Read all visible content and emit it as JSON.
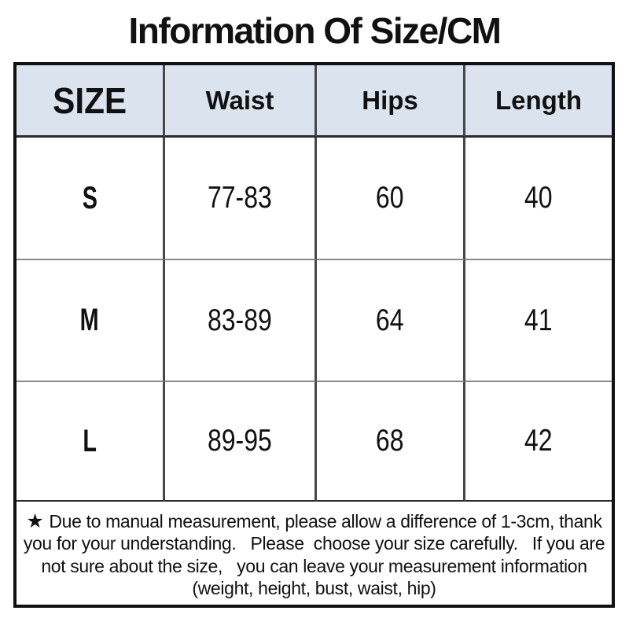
{
  "title": "Information Of Size/CM",
  "table": {
    "header_bg": "#dbe3ef",
    "columns": [
      "SIZE",
      "Waist",
      "Hips",
      "Length"
    ],
    "rows": [
      {
        "size": "S",
        "waist": "77-83",
        "hips": "60",
        "length": "40"
      },
      {
        "size": "M",
        "waist": "83-89",
        "hips": "64",
        "length": "41"
      },
      {
        "size": "L",
        "waist": "89-95",
        "hips": "68",
        "length": "42"
      }
    ]
  },
  "note": {
    "star": "★",
    "lines": [
      "Due to manual measurement, please allow a difference of 1-3cm, thank",
      "you for your understanding.   Please  choose your size carefully.   If you are",
      "not sure about the size,   you can leave your measurement information",
      "(weight, height, bust, waist, hip)"
    ]
  }
}
